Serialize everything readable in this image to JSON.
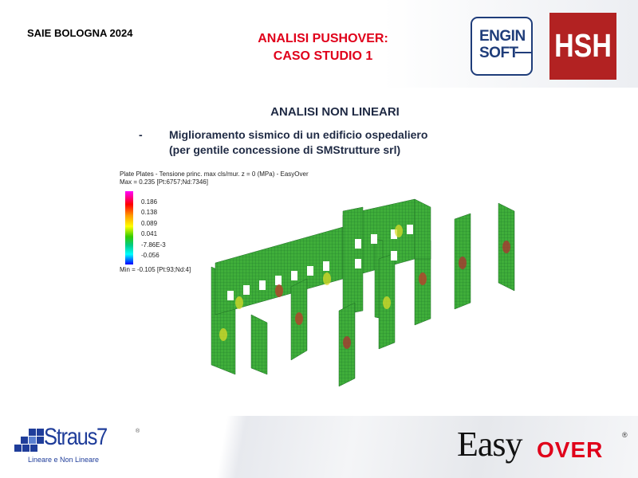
{
  "header": {
    "event": "SAIE BOLOGNA 2024",
    "title_line1": "ANALISI PUSHOVER:",
    "title_line2": "CASO STUDIO 1",
    "logos": {
      "enginsoft_line1": "ENGIN",
      "enginsoft_line2": "SOFT",
      "hsh": "HSH"
    }
  },
  "content": {
    "subtitle": "ANALISI NON LINEARI",
    "bullet_marker": "-",
    "bullet_line1": "Miglioramento sismico di un edificio ospedaliero",
    "bullet_line2": "(per gentile concessione  di SMStrutture srl)"
  },
  "contour_legend": {
    "title": "Plate  Plates - Tensione princ. max cls/mur. z = 0 (MPa) - EasyOver",
    "max": "Max = 0.235 [Pt:6757;Nd:7346]",
    "ticks": [
      "0.186",
      "0.138",
      "0.089",
      "0.041",
      "-7.86E-3",
      "-0.056"
    ],
    "min": "Min = -0.105 [Pt:93;Nd:4]",
    "colors": [
      "#ff00ff",
      "#ff0000",
      "#ff9900",
      "#ffff00",
      "#33cc00",
      "#00cc88",
      "#00ffff",
      "#0000ff"
    ]
  },
  "footer": {
    "straus_name": "Straus7",
    "straus_reg": "®",
    "straus_tagline": "Lineare e Non Lineare",
    "easy": "Easy",
    "over": "OVER",
    "easy_reg": "®"
  },
  "colors": {
    "title_red": "#e0001a",
    "navy": "#1f2a44",
    "hsh_red": "#b22222",
    "enginsoft_blue": "#1f3d7a"
  }
}
